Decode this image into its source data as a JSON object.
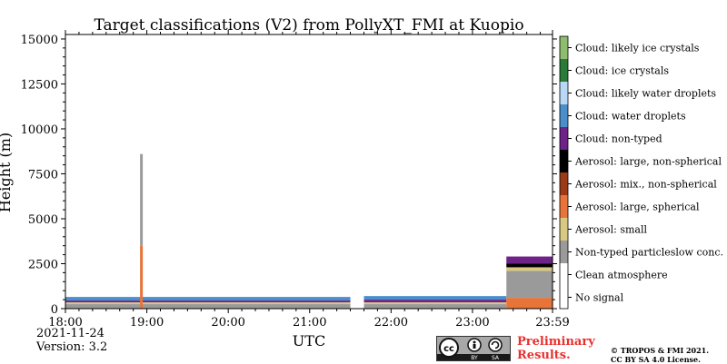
{
  "chart_data": {
    "type": "heatmap",
    "title": "Target classifications (V2) from PollyXT_FMI at Kuopio",
    "xlabel": "UTC",
    "ylabel": "Height (m)",
    "xlim": [
      "18:00",
      "23:59"
    ],
    "ylim": [
      0,
      15250
    ],
    "x_ticks": [
      "18:00",
      "19:00",
      "20:00",
      "21:00",
      "22:00",
      "23:00",
      "23:59"
    ],
    "y_ticks": [
      0,
      2500,
      5000,
      7500,
      10000,
      12500,
      15000
    ],
    "legend": [
      {
        "label": "Cloud: likely ice crystals",
        "color": "#8fbd6f"
      },
      {
        "label": "Cloud: ice crystals",
        "color": "#2a7a3a"
      },
      {
        "label": "Cloud: likely water droplets",
        "color": "#b8d8f5"
      },
      {
        "label": "Cloud: water droplets",
        "color": "#4a8fcc"
      },
      {
        "label": "Cloud: non-typed",
        "color": "#6e2388"
      },
      {
        "label": "Aerosol: large, non-spherical",
        "color": "#000000"
      },
      {
        "label": "Aerosol: mix., non-spherical",
        "color": "#9b3a16"
      },
      {
        "label": "Aerosol: large, spherical",
        "color": "#e8743a"
      },
      {
        "label": "Aerosol: small",
        "color": "#d8c882"
      },
      {
        "label": "Non-typed particleslow conc.",
        "color": "#9a9a9a"
      },
      {
        "label": "Clean atmosphere",
        "color": "#ffffff"
      },
      {
        "label": "No signal",
        "color": "#ffffff"
      }
    ],
    "segments": [
      {
        "t0": "18:00",
        "t1": "21:30",
        "classes": [
          {
            "label": "Non-typed particleslow conc.",
            "h0": 0,
            "h1": 250
          },
          {
            "label": "Aerosol: small",
            "h0": 250,
            "h1": 350
          },
          {
            "label": "Cloud: non-typed",
            "h0": 350,
            "h1": 450
          },
          {
            "label": "Cloud: water droplets",
            "h0": 450,
            "h1": 650
          }
        ]
      },
      {
        "t0": "18:55",
        "t1": "18:57",
        "classes": [
          {
            "label": "Aerosol: large, spherical",
            "h0": 0,
            "h1": 3500
          },
          {
            "label": "Non-typed particleslow conc.",
            "h0": 3500,
            "h1": 8600
          }
        ]
      },
      {
        "t0": "21:40",
        "t1": "23:25",
        "classes": [
          {
            "label": "Non-typed particleslow conc.",
            "h0": 0,
            "h1": 250
          },
          {
            "label": "Aerosol: small",
            "h0": 250,
            "h1": 350
          },
          {
            "label": "Cloud: non-typed",
            "h0": 350,
            "h1": 500
          },
          {
            "label": "Cloud: water droplets",
            "h0": 500,
            "h1": 700
          }
        ]
      },
      {
        "t0": "23:25",
        "t1": "23:59",
        "classes": [
          {
            "label": "Aerosol: large, spherical",
            "h0": 0,
            "h1": 600
          },
          {
            "label": "Non-typed particleslow conc.",
            "h0": 600,
            "h1": 2100
          },
          {
            "label": "Aerosol: small",
            "h0": 2100,
            "h1": 2300
          },
          {
            "label": "Aerosol: large, non-spherical",
            "h0": 2300,
            "h1": 2500
          },
          {
            "label": "Cloud: non-typed",
            "h0": 2500,
            "h1": 2900
          }
        ]
      }
    ]
  },
  "footer": {
    "date": "2021-11-24",
    "version": "Version: 3.2",
    "preliminary_line1": "Preliminary",
    "preliminary_line2": "Results.",
    "copyright_line1": "© TROPOS & FMI 2021.",
    "copyright_line2": "CC BY SA 4.0 License.",
    "badge_cc": "cc",
    "badge_by": "BY",
    "badge_sa": "SA"
  }
}
